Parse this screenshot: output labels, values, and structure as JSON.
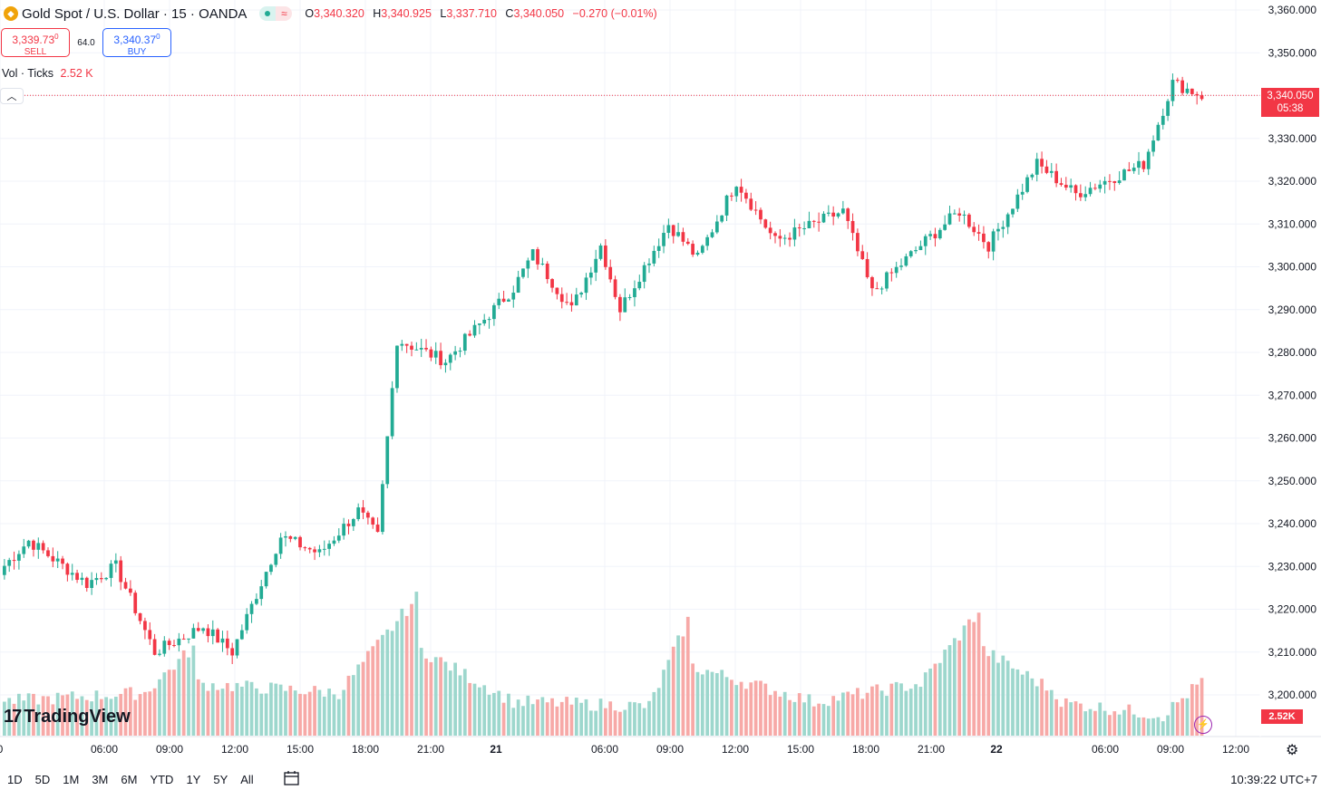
{
  "header": {
    "symbol_title": "Gold Spot / U.S. Dollar · 15 · OANDA",
    "open_label": "O",
    "open": "3,340.320",
    "high_label": "H",
    "high": "3,340.925",
    "low_label": "L",
    "low": "3,337.710",
    "close_label": "C",
    "close": "3,340.050",
    "change": "−0.270 (−0.01%)"
  },
  "trade": {
    "sell_price": "3,339.73",
    "sell_price_sup": "0",
    "sell_label": "SELL",
    "spread": "64.0",
    "buy_price": "3,340.37",
    "buy_price_sup": "0",
    "buy_label": "BUY"
  },
  "volume_legend": {
    "label": "Vol · Ticks",
    "value": "2.52 K"
  },
  "last_price": {
    "price": "3,340.050",
    "countdown": "05:38"
  },
  "last_volume": "2.52K",
  "branding": "TradingView",
  "timeframes": [
    "1D",
    "5D",
    "1M",
    "3M",
    "6M",
    "YTD",
    "1Y",
    "5Y",
    "All"
  ],
  "clock": "10:39:22 UTC+7",
  "colors": {
    "up": "#22ab94",
    "down": "#f23645",
    "up_volume": "#9dd7cd",
    "down_volume": "#f7a9a7"
  },
  "chart_data": {
    "type": "candlestick",
    "y_ticks": [
      "3,360.000",
      "3,350.000",
      "3,340.000",
      "3,330.000",
      "3,320.000",
      "3,310.000",
      "3,300.000",
      "3,290.000",
      "3,280.000",
      "3,270.000",
      "3,260.000",
      "3,250.000",
      "3,240.000",
      "3,230.000",
      "3,220.000",
      "3,210.000",
      "3,200.000"
    ],
    "x_ticks": [
      "0",
      "06:00",
      "09:00",
      "12:00",
      "15:00",
      "18:00",
      "21:00",
      "21",
      "06:00",
      "09:00",
      "12:00",
      "15:00",
      "18:00",
      "21:00",
      "22",
      "06:00",
      "09:00",
      "12:00"
    ],
    "ylim": [
      3195,
      3362
    ],
    "segments": [
      {
        "from": 3229,
        "to": 3236,
        "n": 6
      },
      {
        "from": 3236,
        "to": 3226,
        "n": 12
      },
      {
        "from": 3226,
        "to": 3230,
        "n": 6
      },
      {
        "from": 3230,
        "to": 3210,
        "n": 8
      },
      {
        "from": 3210,
        "to": 3216,
        "n": 10
      },
      {
        "from": 3216,
        "to": 3210,
        "n": 6
      },
      {
        "from": 3210,
        "to": 3237,
        "n": 10
      },
      {
        "from": 3237,
        "to": 3233,
        "n": 8
      },
      {
        "from": 3233,
        "to": 3243,
        "n": 8
      },
      {
        "from": 3243,
        "to": 3237,
        "n": 4
      },
      {
        "from": 3237,
        "to": 3283,
        "n": 4
      },
      {
        "from": 3283,
        "to": 3278,
        "n": 10
      },
      {
        "from": 3278,
        "to": 3295,
        "n": 14
      },
      {
        "from": 3295,
        "to": 3303,
        "n": 4
      },
      {
        "from": 3303,
        "to": 3290,
        "n": 8
      },
      {
        "from": 3290,
        "to": 3305,
        "n": 6
      },
      {
        "from": 3305,
        "to": 3290,
        "n": 4
      },
      {
        "from": 3290,
        "to": 3310,
        "n": 10
      },
      {
        "from": 3310,
        "to": 3302,
        "n": 6
      },
      {
        "from": 3302,
        "to": 3320,
        "n": 8
      },
      {
        "from": 3320,
        "to": 3306,
        "n": 8
      },
      {
        "from": 3306,
        "to": 3313,
        "n": 14
      },
      {
        "from": 3313,
        "to": 3294,
        "n": 6
      },
      {
        "from": 3294,
        "to": 3305,
        "n": 10
      },
      {
        "from": 3305,
        "to": 3313,
        "n": 8
      },
      {
        "from": 3313,
        "to": 3305,
        "n": 6
      },
      {
        "from": 3305,
        "to": 3324,
        "n": 10
      },
      {
        "from": 3324,
        "to": 3317,
        "n": 8
      },
      {
        "from": 3317,
        "to": 3324,
        "n": 14
      },
      {
        "from": 3324,
        "to": 3343,
        "n": 6
      },
      {
        "from": 3343,
        "to": 3340,
        "n": 6
      }
    ],
    "volume_ylim": [
      0,
      2000
    ],
    "volume_profile": [
      {
        "from": 300,
        "to": 400,
        "n": 30
      },
      {
        "from": 400,
        "to": 900,
        "n": 10
      },
      {
        "from": 500,
        "to": 400,
        "n": 30
      },
      {
        "from": 400,
        "to": 1450,
        "n": 16
      },
      {
        "from": 900,
        "to": 300,
        "n": 20
      },
      {
        "from": 300,
        "to": 250,
        "n": 28
      },
      {
        "from": 250,
        "to": 1200,
        "n": 8
      },
      {
        "from": 700,
        "to": 300,
        "n": 26
      },
      {
        "from": 300,
        "to": 500,
        "n": 22
      },
      {
        "from": 500,
        "to": 1300,
        "n": 12
      },
      {
        "from": 900,
        "to": 400,
        "n": 16
      },
      {
        "from": 300,
        "to": 150,
        "n": 22
      },
      {
        "from": 150,
        "to": 800,
        "n": 14
      }
    ]
  }
}
